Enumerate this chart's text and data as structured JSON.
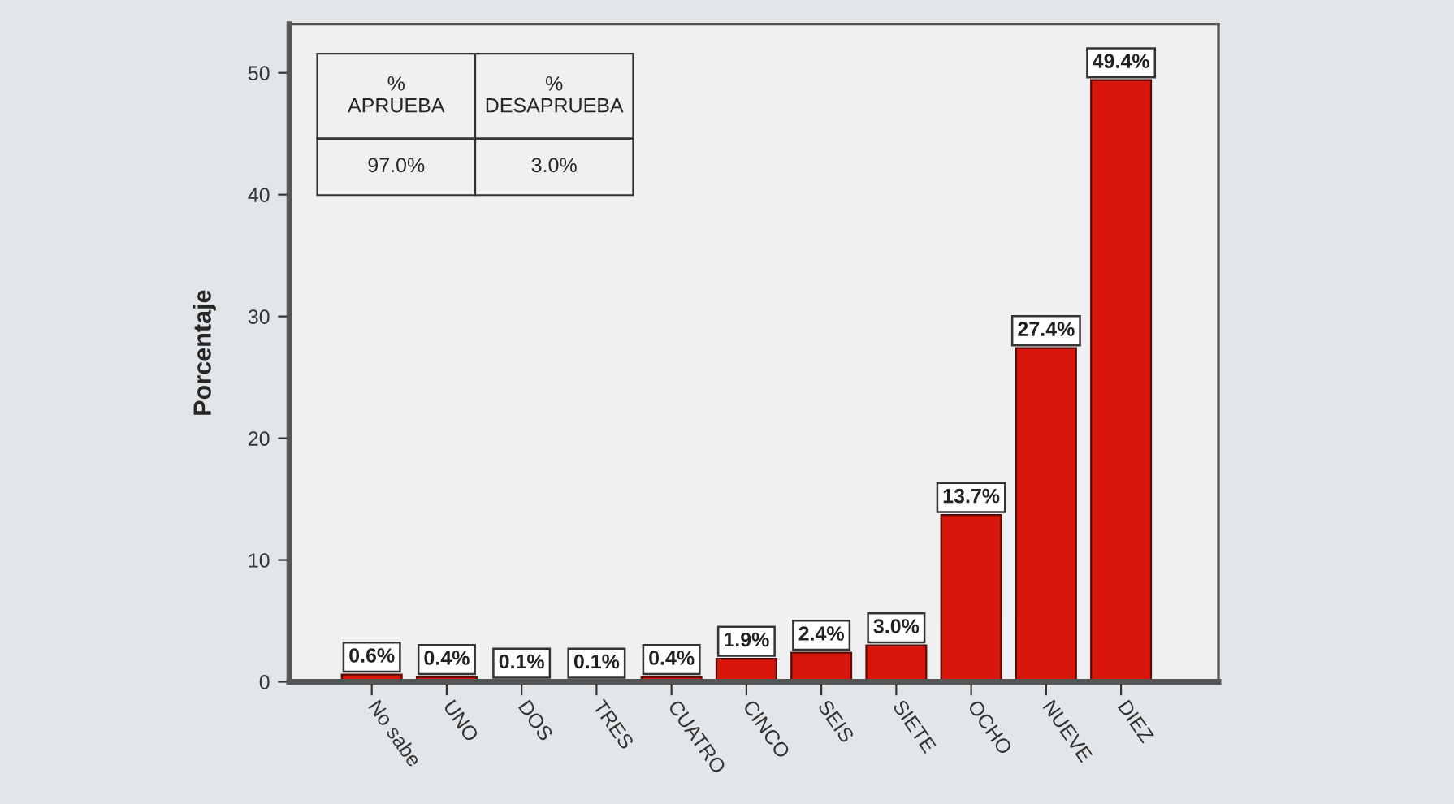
{
  "chart_data": {
    "type": "bar",
    "ylabel": "Porcentaje",
    "categories": [
      "No sabe",
      "UNO",
      "DOS",
      "TRES",
      "CUATRO",
      "CINCO",
      "SEIS",
      "SIETE",
      "OCHO",
      "NUEVE",
      "DIEZ"
    ],
    "values": [
      0.6,
      0.4,
      0.1,
      0.1,
      0.4,
      1.9,
      2.4,
      3.0,
      13.7,
      27.4,
      49.4
    ],
    "value_labels": [
      "0.6%",
      "0.4%",
      "0.1%",
      "0.1%",
      "0.4%",
      "1.9%",
      "2.4%",
      "3.0%",
      "13.7%",
      "27.4%",
      "49.4%"
    ],
    "color": "#d8160c",
    "ylim": [
      0,
      54
    ],
    "yticks": [
      0,
      10,
      20,
      30,
      40,
      50
    ],
    "annotations": [
      "%\nAPRUEBA",
      "%\nDESAPRUEBA",
      "97.0%",
      "3.0%"
    ]
  }
}
